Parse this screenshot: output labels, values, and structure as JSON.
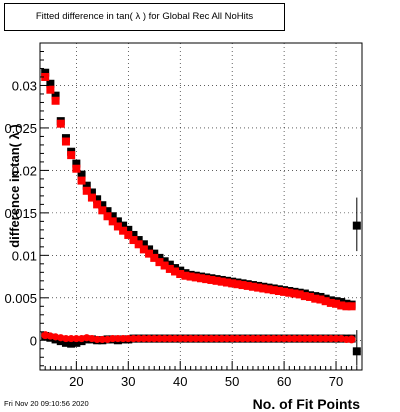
{
  "title": "Fitted difference in tan( λ ) for Global Rec All NoHits",
  "timestamp": "Fri Nov 20 09:10:56 2020",
  "chart_data": {
    "type": "scatter",
    "title": "Fitted difference in tan( λ ) for Global Rec All NoHits",
    "xlabel": "No. of Fit Points",
    "ylabel": "difference in tan( λ )",
    "xlim": [
      13,
      75
    ],
    "ylim": [
      -0.0035,
      0.035
    ],
    "grid": true,
    "legend": "none",
    "xticks": [
      20,
      30,
      40,
      50,
      60,
      70
    ],
    "yticks": [
      0,
      0.005,
      0.01,
      0.015,
      0.02,
      0.025,
      0.03
    ],
    "ytick_labels": [
      "0",
      "0.005",
      "0.01",
      "0.015",
      "0.02",
      "0.025",
      "0.03"
    ],
    "series": [
      {
        "marker": "square",
        "color": "#000000",
        "x": [
          14,
          15,
          16,
          17,
          18,
          19,
          20,
          21,
          22,
          23,
          24,
          25,
          26,
          27,
          28,
          29,
          30,
          31,
          32,
          33,
          34,
          35,
          36,
          37,
          38,
          39,
          40,
          41,
          42,
          43,
          44,
          45,
          46,
          47,
          48,
          49,
          50,
          51,
          52,
          53,
          54,
          55,
          56,
          57,
          58,
          59,
          60,
          61,
          62,
          63,
          64,
          65,
          66,
          67,
          68,
          69,
          70,
          71,
          72,
          73,
          74
        ],
        "y": [
          0.0315,
          0.0302,
          0.0288,
          0.0258,
          0.0238,
          0.0222,
          0.0208,
          0.0195,
          0.0182,
          0.0174,
          0.0166,
          0.0159,
          0.0152,
          0.0146,
          0.014,
          0.0135,
          0.013,
          0.0124,
          0.0118,
          0.0113,
          0.0107,
          0.0102,
          0.0097,
          0.0093,
          0.0089,
          0.0085,
          0.0082,
          0.0079,
          0.0077,
          0.0076,
          0.0075,
          0.0074,
          0.0073,
          0.0072,
          0.0071,
          0.007,
          0.0069,
          0.0068,
          0.0067,
          0.0066,
          0.0065,
          0.0064,
          0.0063,
          0.0062,
          0.0061,
          0.006,
          0.0059,
          0.0058,
          0.0057,
          0.0056,
          0.0055,
          0.0053,
          0.0052,
          0.0051,
          0.0049,
          0.0047,
          0.0046,
          0.0045,
          0.0043,
          0.0042,
          0.0135
        ]
      },
      {
        "marker": "square",
        "color": "#000000",
        "x": [
          14,
          15,
          16,
          17,
          18,
          19,
          20,
          21,
          22,
          23,
          24,
          25,
          26,
          27,
          28,
          29,
          30,
          31,
          32,
          33,
          34,
          35,
          36,
          37,
          38,
          39,
          40,
          41,
          42,
          43,
          44,
          45,
          46,
          47,
          48,
          49,
          50,
          51,
          52,
          53,
          54,
          55,
          56,
          57,
          58,
          59,
          60,
          61,
          62,
          63,
          64,
          65,
          66,
          67,
          68,
          69,
          70,
          71,
          72,
          73,
          74
        ],
        "y": [
          0.0005,
          0.0003,
          0.0001,
          -0.0001,
          -0.0003,
          -0.0004,
          -0.0003,
          -0.0001,
          0.0001,
          0.0001,
          0.0,
          0.0,
          0.0001,
          0.0001,
          0.0,
          0.0001,
          0.0001,
          0.0002,
          0.0002,
          0.0002,
          0.0002,
          0.0002,
          0.0002,
          0.0002,
          0.0002,
          0.0002,
          0.0002,
          0.0002,
          0.0002,
          0.0002,
          0.0002,
          0.0002,
          0.0002,
          0.0002,
          0.0002,
          0.0002,
          0.0002,
          0.0002,
          0.0002,
          0.0002,
          0.0002,
          0.0002,
          0.0002,
          0.0002,
          0.0002,
          0.0002,
          0.0002,
          0.0002,
          0.0002,
          0.0002,
          0.0002,
          0.0002,
          0.0002,
          0.0002,
          0.0002,
          0.0002,
          0.0002,
          0.0002,
          0.0002,
          0.0002,
          -0.0013
        ]
      },
      {
        "marker": "square",
        "color": "#ff0000",
        "x": [
          14,
          15,
          16,
          17,
          18,
          19,
          20,
          21,
          22,
          23,
          24,
          25,
          26,
          27,
          28,
          29,
          30,
          31,
          32,
          33,
          34,
          35,
          36,
          37,
          38,
          39,
          40,
          41,
          42,
          43,
          44,
          45,
          46,
          47,
          48,
          49,
          50,
          51,
          52,
          53,
          54,
          55,
          56,
          57,
          58,
          59,
          60,
          61,
          62,
          63,
          64,
          65,
          66,
          67,
          68,
          69,
          70,
          71,
          72,
          73
        ],
        "y": [
          0.031,
          0.0295,
          0.0282,
          0.0255,
          0.0234,
          0.0218,
          0.0202,
          0.0188,
          0.0176,
          0.0168,
          0.016,
          0.0153,
          0.0146,
          0.014,
          0.0134,
          0.0129,
          0.0124,
          0.0118,
          0.0113,
          0.0107,
          0.0102,
          0.0097,
          0.0092,
          0.0088,
          0.0084,
          0.0081,
          0.0078,
          0.0076,
          0.0075,
          0.0074,
          0.0073,
          0.0072,
          0.0071,
          0.007,
          0.0069,
          0.0068,
          0.0067,
          0.0066,
          0.0065,
          0.0064,
          0.0063,
          0.0062,
          0.0061,
          0.006,
          0.0059,
          0.0058,
          0.0057,
          0.0056,
          0.0055,
          0.0054,
          0.0052,
          0.0051,
          0.0049,
          0.0048,
          0.0046,
          0.0044,
          0.0043,
          0.0041,
          0.004,
          0.004
        ]
      },
      {
        "marker": "circle",
        "color": "#ff0000",
        "x": [
          14,
          15,
          16,
          17,
          18,
          19,
          20,
          21,
          22,
          23,
          24,
          25,
          26,
          27,
          28,
          29,
          30,
          31,
          32,
          33,
          34,
          35,
          36,
          37,
          38,
          39,
          40,
          41,
          42,
          43,
          44,
          45,
          46,
          47,
          48,
          49,
          50,
          51,
          52,
          53,
          54,
          55,
          56,
          57,
          58,
          59,
          60,
          61,
          62,
          63,
          64,
          65,
          66,
          67,
          68,
          69,
          70,
          71,
          72,
          73
        ],
        "y": [
          0.0006,
          0.0005,
          0.0004,
          0.0003,
          0.0002,
          0.0002,
          0.0002,
          0.0002,
          0.0003,
          0.0002,
          0.0001,
          0.0001,
          0.0001,
          0.0002,
          0.0002,
          0.0002,
          0.0002,
          0.0002,
          0.0002,
          0.0002,
          0.0002,
          0.0002,
          0.0002,
          0.0002,
          0.0002,
          0.0002,
          0.0002,
          0.0002,
          0.0002,
          0.0002,
          0.0002,
          0.0002,
          0.0002,
          0.0002,
          0.0002,
          0.0002,
          0.0002,
          0.0002,
          0.0002,
          0.0002,
          0.0002,
          0.0002,
          0.0002,
          0.0002,
          0.0002,
          0.0002,
          0.0002,
          0.0002,
          0.0002,
          0.0002,
          0.0002,
          0.0002,
          0.0002,
          0.0002,
          0.0002,
          0.0002,
          0.0002,
          0.0002,
          0.0001,
          0.0001
        ]
      }
    ]
  }
}
